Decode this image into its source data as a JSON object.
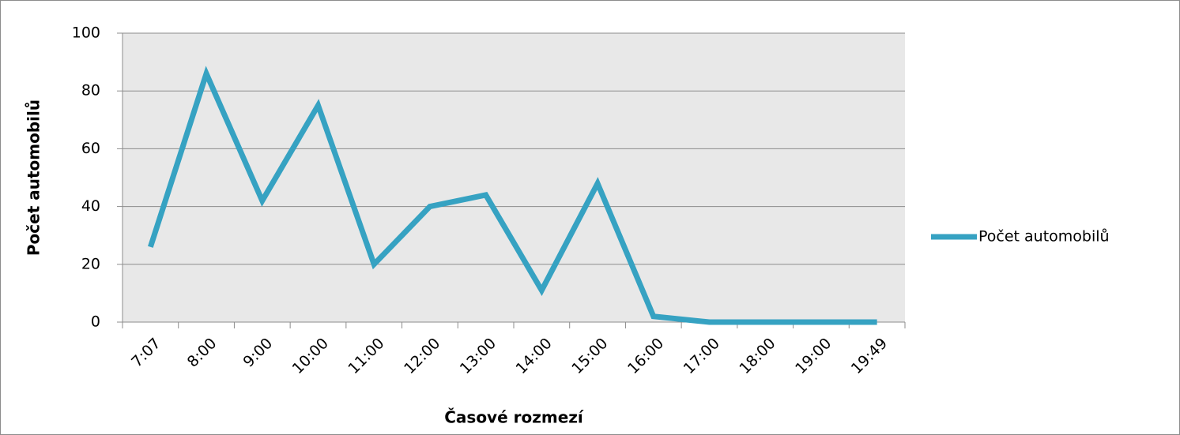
{
  "chart_data": {
    "type": "line",
    "x_label": "Časové rozmezí",
    "y_label": "Počet automobilů",
    "categories": [
      "7:07",
      "8:00",
      "9:00",
      "10:00",
      "11:00",
      "12:00",
      "13:00",
      "14:00",
      "15:00",
      "16:00",
      "17:00",
      "18:00",
      "19:00",
      "19:49"
    ],
    "series": [
      {
        "name": "Počet automobilů",
        "color": "#36a2c2",
        "values": [
          26,
          86,
          42,
          75,
          20,
          40,
          44,
          11,
          48,
          2,
          0,
          0,
          0,
          0
        ]
      }
    ],
    "ylim": [
      0,
      100
    ],
    "yticks": [
      0,
      20,
      40,
      60,
      80,
      100
    ],
    "grid": true,
    "legend": "right"
  }
}
